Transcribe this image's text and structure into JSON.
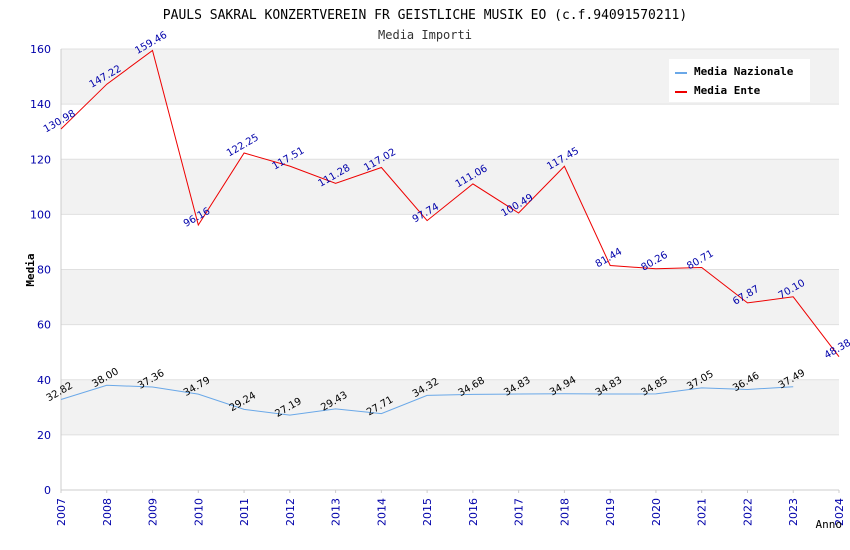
{
  "chart_data": {
    "type": "line",
    "title": "PAULS SAKRAL KONZERTVEREIN FR GEISTLICHE MUSIK EO (c.f.94091570211)",
    "subtitle": "Media Importi",
    "xlabel": "Anno",
    "ylabel": "Media",
    "ylim": [
      0,
      160
    ],
    "yticks": [
      0,
      20,
      40,
      60,
      80,
      100,
      120,
      140,
      160
    ],
    "grid": true,
    "legend_position": "top-right",
    "categories": [
      "2007",
      "2008",
      "2009",
      "2010",
      "2011",
      "2012",
      "2013",
      "2014",
      "2015",
      "2016",
      "2017",
      "2018",
      "2019",
      "2020",
      "2021",
      "2022",
      "2023",
      "2024"
    ],
    "series": [
      {
        "name": "Media Nazionale",
        "color": "#6aa8e8",
        "label_color": "#000000",
        "values": [
          32.82,
          38.0,
          37.36,
          34.79,
          29.24,
          27.19,
          29.43,
          27.71,
          34.32,
          34.68,
          34.83,
          34.94,
          34.83,
          34.85,
          37.05,
          36.46,
          37.49,
          null
        ],
        "labels": [
          "32.82",
          "38.00",
          "37.36",
          "34.79",
          "29.24",
          "27.19",
          "29.43",
          "27.71",
          "34.32",
          "34.68",
          "34.83",
          "34.94",
          "34.83",
          "34.85",
          "37.05",
          "36.46",
          "37.49",
          ""
        ]
      },
      {
        "name": "Media Ente",
        "color": "#ee0000",
        "label_color": "#0000aa",
        "values": [
          130.98,
          147.22,
          159.46,
          96.16,
          122.25,
          117.51,
          111.28,
          117.02,
          97.74,
          111.06,
          100.49,
          117.45,
          81.44,
          80.26,
          80.71,
          67.87,
          70.1,
          48.38
        ],
        "labels": [
          "130.98",
          "147.22",
          "159.46",
          "96.16",
          "122.25",
          "117.51",
          "111.28",
          "117.02",
          "97.74",
          "111.06",
          "100.49",
          "117.45",
          "81.44",
          "80.26",
          "80.71",
          "67.87",
          "70.10",
          "48.38"
        ]
      }
    ]
  }
}
